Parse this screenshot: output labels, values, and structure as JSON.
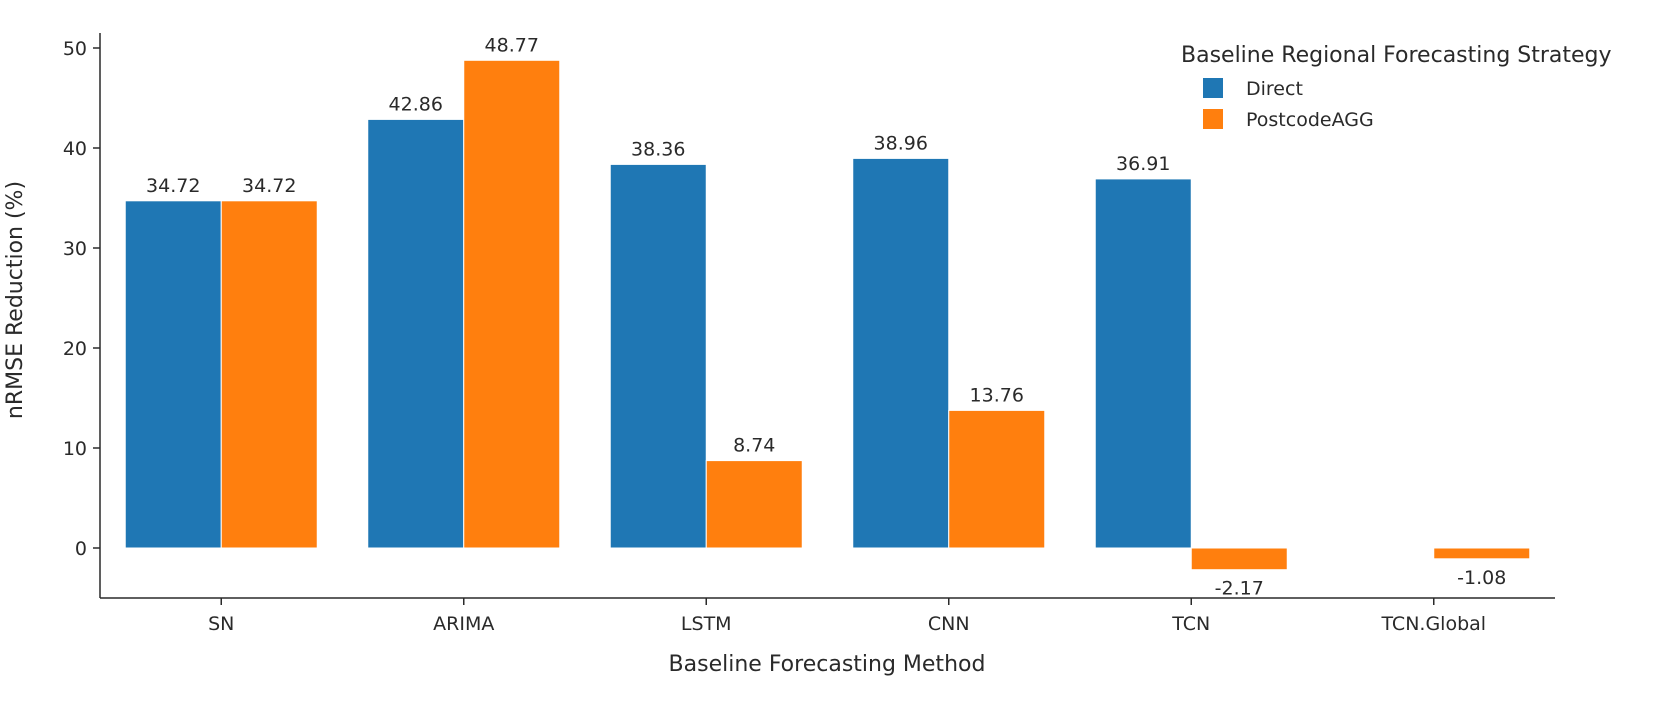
{
  "chart_data": {
    "type": "bar",
    "title": "",
    "xlabel": "Baseline Forecasting Method",
    "ylabel": "nRMSE Reduction (%)",
    "categories": [
      "SN",
      "ARIMA",
      "LSTM",
      "CNN",
      "TCN",
      "TCN.Global"
    ],
    "ylim": [
      -5,
      51.5
    ],
    "yticks": [
      0,
      10,
      20,
      30,
      40,
      50
    ],
    "legend": {
      "title": "Baseline Regional Forecasting Strategy",
      "position": "top-right"
    },
    "series": [
      {
        "name": "Direct",
        "color": "#1f77b4",
        "values": [
          34.72,
          42.86,
          38.36,
          38.96,
          36.91,
          null
        ],
        "labels": [
          "34.72",
          "42.86",
          "38.36",
          "38.96",
          "36.91",
          ""
        ]
      },
      {
        "name": "PostcodeAGG",
        "color": "#ff7f0e",
        "values": [
          34.72,
          48.77,
          8.74,
          13.76,
          -2.17,
          -1.08
        ],
        "labels": [
          "34.72",
          "48.77",
          "8.74",
          "13.76",
          "-2.17",
          "-1.08"
        ]
      }
    ]
  }
}
